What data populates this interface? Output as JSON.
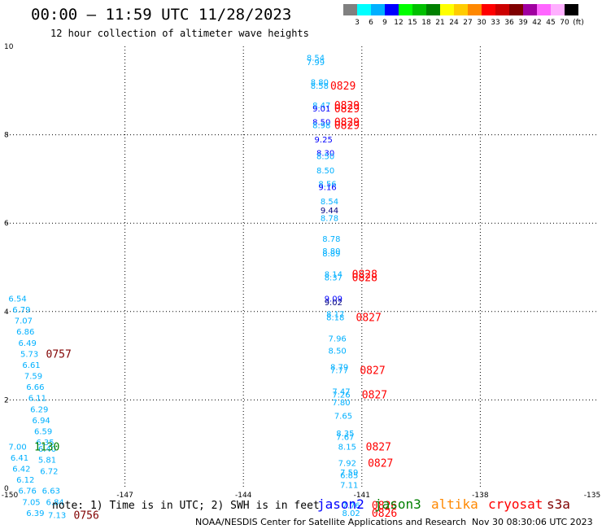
{
  "header": {
    "title": "00:00 – 11:59 UTC 11/28/2023",
    "subtitle": "12 hour collection of altimeter wave heights"
  },
  "color_scale": {
    "labels": [
      "3",
      "6",
      "9",
      "12",
      "15",
      "18",
      "21",
      "24",
      "27",
      "30",
      "33",
      "36",
      "39",
      "42",
      "45",
      "70",
      "(ft)"
    ],
    "colors": [
      "#808080",
      "#00ffff",
      "#00b0ff",
      "#0000ff",
      "#00ff00",
      "#00c000",
      "#008000",
      "#ffff00",
      "#ffcc00",
      "#ff8800",
      "#ff0000",
      "#cc0000",
      "#800000",
      "#a000a0",
      "#ff66ff",
      "#ffb0ff",
      "#000000"
    ]
  },
  "footer": {
    "note": "note: 1) Time is in UTC; 2) SWH is in feet",
    "satellites": [
      {
        "name": "jason2",
        "color": "#0000ff"
      },
      {
        "name": "jason3",
        "color": "#008000"
      },
      {
        "name": "altika",
        "color": "#ff8800"
      },
      {
        "name": "cryosat",
        "color": "#ff0000"
      },
      {
        "name": "s3a",
        "color": "#800000"
      }
    ],
    "credit": "NOAA/NESDIS Center for Satellite Applications and Research",
    "timestamp": "Nov 30 08:30:06 UTC 2023"
  },
  "chart_data": {
    "type": "scatter",
    "xlim": [
      -150,
      -135
    ],
    "ylim": [
      0,
      10
    ],
    "x_ticks": [
      "-150",
      "-147",
      "-144",
      "-141",
      "-138",
      "-135"
    ],
    "y_ticks": [
      "0",
      "2",
      "4",
      "6",
      "8",
      "10"
    ],
    "grid": true,
    "values": [
      {
        "x": -142.4,
        "y": 9.75,
        "label": "8.54",
        "color": "#00b0ff"
      },
      {
        "x": -142.4,
        "y": 9.65,
        "label": "7.99",
        "color": "#00b0ff"
      },
      {
        "x": -142.3,
        "y": 9.2,
        "label": "8.80",
        "color": "#00b0ff"
      },
      {
        "x": -142.3,
        "y": 9.12,
        "label": "8.58",
        "color": "#00b0ff"
      },
      {
        "x": -142.25,
        "y": 8.67,
        "label": "8.47",
        "color": "#00b0ff"
      },
      {
        "x": -142.25,
        "y": 8.6,
        "label": "9.01",
        "color": "#0000ff"
      },
      {
        "x": -142.25,
        "y": 8.3,
        "label": "8.50",
        "color": "#0000ff"
      },
      {
        "x": -142.25,
        "y": 8.22,
        "label": "8.98",
        "color": "#00b0ff"
      },
      {
        "x": -142.2,
        "y": 7.9,
        "label": "9.25",
        "color": "#0000ff"
      },
      {
        "x": -142.15,
        "y": 7.6,
        "label": "8.30",
        "color": "#0000ff"
      },
      {
        "x": -142.15,
        "y": 7.52,
        "label": "8.50",
        "color": "#00b0ff"
      },
      {
        "x": -142.15,
        "y": 7.2,
        "label": "8.50",
        "color": "#00b0ff"
      },
      {
        "x": -142.1,
        "y": 6.9,
        "label": "8.56",
        "color": "#00b0ff"
      },
      {
        "x": -142.1,
        "y": 6.82,
        "label": "9.16",
        "color": "#0000ff"
      },
      {
        "x": -142.05,
        "y": 6.5,
        "label": "8.54",
        "color": "#00b0ff"
      },
      {
        "x": -142.05,
        "y": 6.3,
        "label": "9.44",
        "color": "#000080"
      },
      {
        "x": -142.05,
        "y": 6.12,
        "label": "8.78",
        "color": "#00b0ff"
      },
      {
        "x": -142.0,
        "y": 5.65,
        "label": "8.78",
        "color": "#00b0ff"
      },
      {
        "x": -142.0,
        "y": 5.38,
        "label": "8.80",
        "color": "#00b0ff"
      },
      {
        "x": -142.0,
        "y": 5.32,
        "label": "8.89",
        "color": "#00b0ff"
      },
      {
        "x": -141.95,
        "y": 4.85,
        "label": "8.14",
        "color": "#00b0ff"
      },
      {
        "x": -141.95,
        "y": 4.78,
        "label": "8.37",
        "color": "#00b0ff"
      },
      {
        "x": -141.95,
        "y": 4.3,
        "label": "9.09",
        "color": "#0000ff"
      },
      {
        "x": -141.95,
        "y": 4.22,
        "label": "9.02",
        "color": "#000080"
      },
      {
        "x": -141.9,
        "y": 3.95,
        "label": "8.17",
        "color": "#00b0ff"
      },
      {
        "x": -141.9,
        "y": 3.88,
        "label": "8.18",
        "color": "#00b0ff"
      },
      {
        "x": -141.85,
        "y": 3.4,
        "label": "7.96",
        "color": "#00b0ff"
      },
      {
        "x": -141.85,
        "y": 3.12,
        "label": "8.50",
        "color": "#00b0ff"
      },
      {
        "x": -141.8,
        "y": 2.75,
        "label": "8.79",
        "color": "#00b0ff"
      },
      {
        "x": -141.8,
        "y": 2.68,
        "label": "7.77",
        "color": "#00b0ff"
      },
      {
        "x": -141.75,
        "y": 2.2,
        "label": "7.47",
        "color": "#00b0ff"
      },
      {
        "x": -141.75,
        "y": 2.13,
        "label": "7.26",
        "color": "#00b0ff"
      },
      {
        "x": -141.75,
        "y": 1.95,
        "label": "7.80",
        "color": "#00b0ff"
      },
      {
        "x": -141.7,
        "y": 1.65,
        "label": "7.65",
        "color": "#00b0ff"
      },
      {
        "x": -141.65,
        "y": 1.25,
        "label": "8.35",
        "color": "#00b0ff"
      },
      {
        "x": -141.65,
        "y": 1.17,
        "label": "7.67",
        "color": "#00b0ff"
      },
      {
        "x": -141.6,
        "y": 0.95,
        "label": "8.15",
        "color": "#00b0ff"
      },
      {
        "x": -141.6,
        "y": 0.58,
        "label": "7.92",
        "color": "#00b0ff"
      },
      {
        "x": -141.55,
        "y": 0.37,
        "label": "7.59",
        "color": "#00b0ff"
      },
      {
        "x": -141.55,
        "y": 0.3,
        "label": "6.85",
        "color": "#00b0ff"
      },
      {
        "x": -141.55,
        "y": 0.08,
        "label": "7.11",
        "color": "#00b0ff"
      },
      {
        "x": -141.5,
        "y": -0.38,
        "label": "7.76",
        "color": "#00b0ff"
      },
      {
        "x": -141.5,
        "y": -0.55,
        "label": "8.02",
        "color": "#00b0ff"
      },
      {
        "x": -149.95,
        "y": 4.3,
        "label": "6.54",
        "color": "#00b0ff"
      },
      {
        "x": -149.85,
        "y": 4.05,
        "label": "6.79",
        "color": "#00b0ff"
      },
      {
        "x": -149.8,
        "y": 3.8,
        "label": "7.07",
        "color": "#00b0ff"
      },
      {
        "x": -149.75,
        "y": 3.55,
        "label": "6.86",
        "color": "#00b0ff"
      },
      {
        "x": -149.7,
        "y": 3.3,
        "label": "6.49",
        "color": "#00b0ff"
      },
      {
        "x": -149.65,
        "y": 3.05,
        "label": "5.73",
        "color": "#00b0ff"
      },
      {
        "x": -149.6,
        "y": 2.8,
        "label": "6.61",
        "color": "#00b0ff"
      },
      {
        "x": -149.55,
        "y": 2.55,
        "label": "7.59",
        "color": "#00b0ff"
      },
      {
        "x": -149.5,
        "y": 2.3,
        "label": "6.66",
        "color": "#00b0ff"
      },
      {
        "x": -149.45,
        "y": 2.05,
        "label": "6.11",
        "color": "#00b0ff"
      },
      {
        "x": -149.4,
        "y": 1.8,
        "label": "6.29",
        "color": "#00b0ff"
      },
      {
        "x": -149.35,
        "y": 1.55,
        "label": "6.94",
        "color": "#00b0ff"
      },
      {
        "x": -149.3,
        "y": 1.3,
        "label": "6.59",
        "color": "#00b0ff"
      },
      {
        "x": -149.25,
        "y": 1.05,
        "label": "6.35",
        "color": "#00b0ff"
      },
      {
        "x": -149.2,
        "y": 0.9,
        "label": "6.40",
        "color": "#00b0ff"
      },
      {
        "x": -149.95,
        "y": 0.95,
        "label": "7.00",
        "color": "#00b0ff"
      },
      {
        "x": -149.9,
        "y": 0.7,
        "label": "6.41",
        "color": "#00b0ff"
      },
      {
        "x": -149.2,
        "y": 0.65,
        "label": "5.81",
        "color": "#00b0ff"
      },
      {
        "x": -149.85,
        "y": 0.45,
        "label": "6.42",
        "color": "#00b0ff"
      },
      {
        "x": -149.15,
        "y": 0.4,
        "label": "6.72",
        "color": "#00b0ff"
      },
      {
        "x": -149.75,
        "y": 0.2,
        "label": "6.12",
        "color": "#00b0ff"
      },
      {
        "x": -149.7,
        "y": -0.05,
        "label": "6.76",
        "color": "#00b0ff"
      },
      {
        "x": -149.1,
        "y": -0.05,
        "label": "6.63",
        "color": "#00b0ff"
      },
      {
        "x": -149.6,
        "y": -0.3,
        "label": "7.05",
        "color": "#00b0ff"
      },
      {
        "x": -149.0,
        "y": -0.3,
        "label": "6.84",
        "color": "#00b0ff"
      },
      {
        "x": -149.5,
        "y": -0.55,
        "label": "6.39",
        "color": "#00b0ff"
      },
      {
        "x": -148.95,
        "y": -0.6,
        "label": "7.13",
        "color": "#00b0ff"
      }
    ],
    "annotations": [
      {
        "x": -141.8,
        "y": 9.12,
        "text": "0829",
        "color": "#ff0000"
      },
      {
        "x": -141.7,
        "y": 8.67,
        "text": "0829",
        "color": "#ff0000"
      },
      {
        "x": -141.7,
        "y": 8.6,
        "text": "0829",
        "color": "#ff0000"
      },
      {
        "x": -141.7,
        "y": 8.3,
        "text": "0829",
        "color": "#ff0000"
      },
      {
        "x": -141.7,
        "y": 8.22,
        "text": "0829",
        "color": "#ff0000"
      },
      {
        "x": -141.25,
        "y": 4.85,
        "text": "0828",
        "color": "#ff0000"
      },
      {
        "x": -141.25,
        "y": 4.78,
        "text": "0828",
        "color": "#ff0000"
      },
      {
        "x": -141.15,
        "y": 3.88,
        "text": "0827",
        "color": "#ff0000"
      },
      {
        "x": -141.05,
        "y": 2.68,
        "text": "0827",
        "color": "#ff0000"
      },
      {
        "x": -141.0,
        "y": 2.13,
        "text": "0827",
        "color": "#ff0000"
      },
      {
        "x": -140.9,
        "y": 0.95,
        "text": "0827",
        "color": "#ff0000"
      },
      {
        "x": -140.85,
        "y": 0.58,
        "text": "0827",
        "color": "#ff0000"
      },
      {
        "x": -140.75,
        "y": -0.38,
        "text": "0826",
        "color": "#ff0000"
      },
      {
        "x": -140.75,
        "y": -0.55,
        "text": "0826",
        "color": "#ff0000"
      },
      {
        "x": -149.0,
        "y": 3.05,
        "text": "0757",
        "color": "#800000"
      },
      {
        "x": -149.3,
        "y": 0.95,
        "text": "1130",
        "color": "#008000"
      },
      {
        "x": -148.3,
        "y": -0.6,
        "text": "0756",
        "color": "#800000"
      }
    ]
  }
}
